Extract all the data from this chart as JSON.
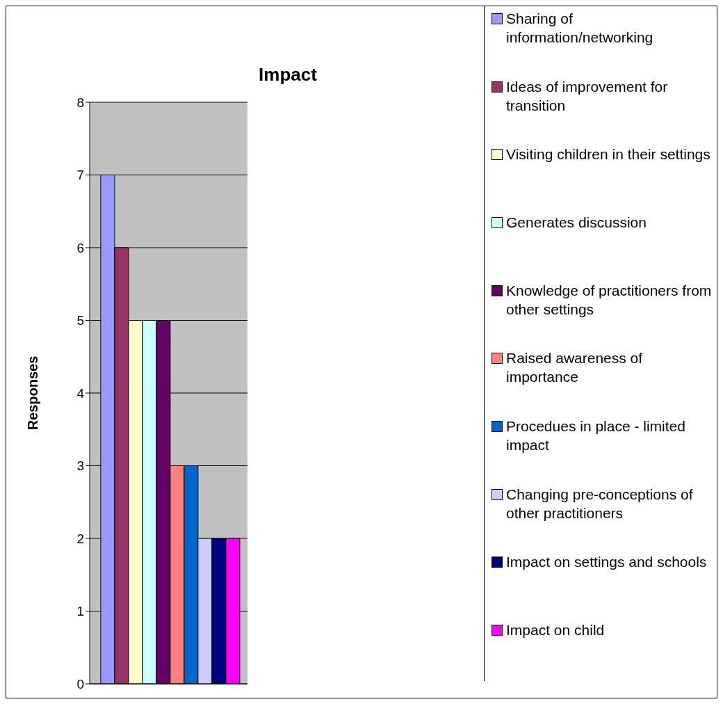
{
  "chart_data": {
    "type": "bar",
    "title": "Impact",
    "ylabel": "Responses",
    "categories": [
      null
    ],
    "series": [
      {
        "name": "Sharing of information/networking",
        "color": "#9999ff",
        "values": [
          7
        ]
      },
      {
        "name": "Ideas of improvement for transition",
        "color": "#993366",
        "values": [
          6
        ]
      },
      {
        "name": "Visiting children in their settings",
        "color": "#ffffcc",
        "values": [
          5
        ]
      },
      {
        "name": "Generates discussion",
        "color": "#ccffff",
        "values": [
          5
        ]
      },
      {
        "name": "Knowledge of practitioners from other settings",
        "color": "#660066",
        "values": [
          5
        ]
      },
      {
        "name": "Raised awareness of importance",
        "color": "#ff8080",
        "values": [
          3
        ]
      },
      {
        "name": "Procedues in place - limited impact",
        "color": "#0066cc",
        "values": [
          3
        ]
      },
      {
        "name": "Changing pre-conceptions of other practitioners",
        "color": "#ccccff",
        "values": [
          2
        ]
      },
      {
        "name": "Impact on settings and schools",
        "color": "#000080",
        "values": [
          2
        ]
      },
      {
        "name": "Impact on child",
        "color": "#ff00ff",
        "values": [
          2
        ]
      }
    ],
    "ylim": [
      0,
      8
    ],
    "yticks": [
      0,
      1,
      2,
      3,
      4,
      5,
      6,
      7,
      8
    ],
    "grid": "y",
    "legend": "right"
  }
}
